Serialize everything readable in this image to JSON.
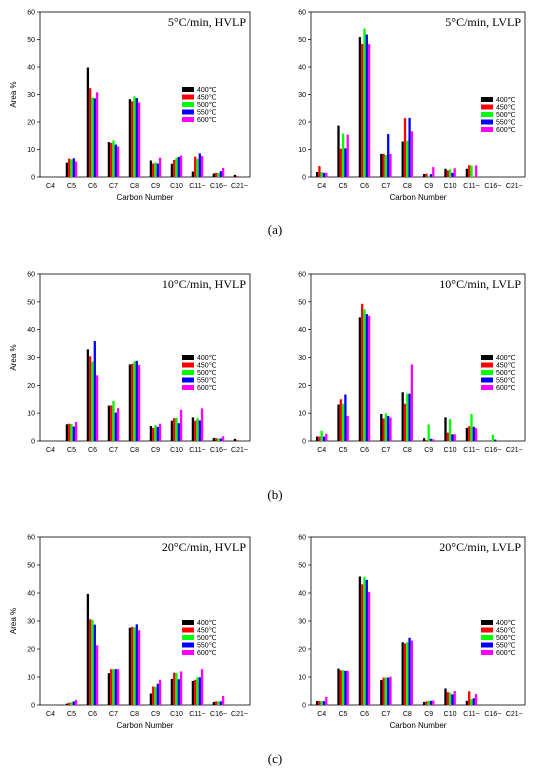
{
  "series_colors": [
    "#000000",
    "#ff0000",
    "#00ff00",
    "#0000ff",
    "#ff00ff"
  ],
  "chart_data": [
    {
      "type": "bar",
      "title": "5°C/min, HVLP",
      "xlabel": "Carbon Number",
      "ylabel": "Area %",
      "ylim": [
        0,
        60
      ],
      "yticks": [
        0,
        10,
        20,
        30,
        40,
        50,
        60
      ],
      "categories": [
        "C4",
        "C5",
        "C6",
        "C7",
        "C8",
        "C9",
        "C10",
        "C11~",
        "C16~",
        "C21~"
      ],
      "legend_position": "right",
      "series": [
        {
          "name": "400℃",
          "values": [
            0,
            5.2,
            39.8,
            12.7,
            28.3,
            6.0,
            4.8,
            2.0,
            1.3,
            0.8
          ]
        },
        {
          "name": "450℃",
          "values": [
            0,
            6.7,
            32.3,
            12.4,
            27.5,
            4.9,
            6.2,
            7.4,
            1.5,
            0.3
          ]
        },
        {
          "name": "500℃",
          "values": [
            0,
            6.4,
            28.9,
            13.3,
            29.3,
            5.3,
            6.9,
            6.6,
            1.4,
            0
          ]
        },
        {
          "name": "550℃",
          "values": [
            0,
            6.8,
            28.6,
            11.8,
            28.7,
            4.9,
            7.3,
            8.6,
            2.1,
            0
          ]
        },
        {
          "name": "600℃",
          "values": [
            0,
            5.6,
            30.8,
            11.1,
            27.1,
            7.0,
            7.8,
            7.6,
            3.3,
            0
          ]
        }
      ]
    },
    {
      "type": "bar",
      "title": "5°C/min, LVLP",
      "xlabel": "Carbon Number",
      "ylabel": "",
      "ylim": [
        0,
        60
      ],
      "yticks": [
        0,
        10,
        20,
        30,
        40,
        50,
        60
      ],
      "categories": [
        "C4",
        "C5",
        "C6",
        "C7",
        "C8",
        "C9",
        "C10",
        "C11~",
        "C16~",
        "C21~"
      ],
      "legend_position": "right",
      "series": [
        {
          "name": "400℃",
          "values": [
            1.8,
            18.7,
            50.9,
            8.4,
            12.9,
            1.1,
            3.0,
            3.0,
            0,
            0
          ]
        },
        {
          "name": "450℃",
          "values": [
            4.0,
            10.3,
            48.4,
            8.4,
            21.4,
            1.2,
            2.4,
            4.3,
            0,
            0
          ]
        },
        {
          "name": "500℃",
          "values": [
            1.8,
            15.8,
            54.0,
            8.0,
            13.2,
            0.3,
            2.8,
            4.1,
            0,
            0
          ]
        },
        {
          "name": "550℃",
          "values": [
            1.5,
            10.4,
            51.8,
            15.6,
            21.5,
            1.0,
            1.5,
            0,
            0,
            0
          ]
        },
        {
          "name": "600℃",
          "values": [
            1.5,
            15.4,
            48.3,
            8.4,
            16.6,
            3.6,
            3.2,
            4.2,
            0,
            0
          ]
        }
      ]
    },
    {
      "type": "bar",
      "title": "10°C/min, HVLP",
      "xlabel": "",
      "ylabel": "Area %",
      "ylim": [
        0,
        60
      ],
      "yticks": [
        0,
        10,
        20,
        30,
        40,
        50,
        60
      ],
      "categories": [
        "C4",
        "C5",
        "C6",
        "C7",
        "C8",
        "C9",
        "C10",
        "C11~",
        "C16~",
        "C21~"
      ],
      "legend_position": "right",
      "series": [
        {
          "name": "400℃",
          "values": [
            0,
            6.0,
            32.9,
            12.7,
            27.5,
            5.4,
            7.3,
            8.5,
            1.1,
            0.8
          ]
        },
        {
          "name": "450℃",
          "values": [
            0,
            6.2,
            30.4,
            12.8,
            27.7,
            4.7,
            8.2,
            7.3,
            1.0,
            0.3
          ]
        },
        {
          "name": "500℃",
          "values": [
            0,
            6.1,
            28.5,
            14.4,
            28.6,
            5.7,
            8.3,
            8.2,
            0.9,
            0
          ]
        },
        {
          "name": "550℃",
          "values": [
            0,
            5.2,
            35.9,
            10.2,
            28.8,
            5.1,
            6.4,
            7.4,
            0.9,
            0
          ]
        },
        {
          "name": "600℃",
          "values": [
            0,
            6.8,
            23.6,
            11.8,
            27.3,
            6.2,
            11.2,
            11.7,
            1.7,
            0
          ]
        }
      ]
    },
    {
      "type": "bar",
      "title": "10°C/min, LVLP",
      "xlabel": "",
      "ylabel": "",
      "ylim": [
        0,
        60
      ],
      "yticks": [
        0,
        10,
        20,
        30,
        40,
        50,
        60
      ],
      "categories": [
        "C4",
        "C5",
        "C6",
        "C7",
        "C8",
        "C9",
        "C10",
        "C11~",
        "C16~",
        "C21~"
      ],
      "legend_position": "right",
      "series": [
        {
          "name": "400℃",
          "values": [
            1.6,
            13.1,
            44.4,
            9.7,
            17.5,
            1.0,
            8.5,
            4.7,
            0,
            0
          ]
        },
        {
          "name": "450℃",
          "values": [
            1.6,
            15.0,
            49.3,
            8.1,
            13.4,
            0.3,
            3.0,
            5.3,
            0,
            0
          ]
        },
        {
          "name": "500℃",
          "values": [
            3.7,
            13.4,
            47.3,
            9.9,
            17.0,
            5.9,
            7.9,
            9.7,
            2.2,
            0
          ]
        },
        {
          "name": "550℃",
          "values": [
            1.6,
            16.7,
            45.6,
            9.0,
            17.0,
            0.8,
            2.4,
            5.1,
            0.5,
            0
          ]
        },
        {
          "name": "600℃",
          "values": [
            2.6,
            9.0,
            45.0,
            8.4,
            27.5,
            0.6,
            2.4,
            4.6,
            0,
            0
          ]
        }
      ]
    },
    {
      "type": "bar",
      "title": "20°C/min, HVLP",
      "xlabel": "Carbon Number",
      "ylabel": "Area %",
      "ylim": [
        0,
        60
      ],
      "yticks": [
        0,
        10,
        20,
        30,
        40,
        50,
        60
      ],
      "categories": [
        "C4",
        "C5",
        "C6",
        "C7",
        "C8",
        "C9",
        "C10",
        "C11~",
        "C16~",
        "C21~"
      ],
      "legend_position": "right",
      "series": [
        {
          "name": "400℃",
          "values": [
            0,
            0.5,
            39.7,
            11.4,
            27.6,
            4.1,
            9.3,
            8.6,
            1.1,
            0
          ]
        },
        {
          "name": "450℃",
          "values": [
            0,
            0.8,
            30.6,
            12.8,
            27.9,
            6.6,
            11.5,
            9.0,
            1.3,
            0
          ]
        },
        {
          "name": "500℃",
          "values": [
            0,
            1.0,
            30.4,
            12.8,
            27.7,
            6.5,
            11.4,
            9.9,
            1.3,
            0
          ]
        },
        {
          "name": "550℃",
          "values": [
            0,
            1.3,
            28.7,
            12.8,
            28.8,
            7.6,
            9.2,
            9.9,
            1.3,
            0
          ]
        },
        {
          "name": "600℃",
          "values": [
            0,
            1.8,
            21.3,
            12.8,
            26.7,
            9.0,
            12.0,
            12.8,
            3.2,
            0
          ]
        }
      ]
    },
    {
      "type": "bar",
      "title": "20°C/min, LVLP",
      "xlabel": "Carbon Number",
      "ylabel": "",
      "ylim": [
        0,
        60
      ],
      "yticks": [
        0,
        10,
        20,
        30,
        40,
        50,
        60
      ],
      "categories": [
        "C4",
        "C5",
        "C6",
        "C7",
        "C8",
        "C9",
        "C10",
        "C11~",
        "C16~",
        "C21~"
      ],
      "legend_position": "right",
      "series": [
        {
          "name": "400℃",
          "values": [
            1.4,
            13.0,
            45.9,
            8.9,
            22.4,
            1.1,
            5.9,
            1.5,
            0,
            0
          ]
        },
        {
          "name": "450℃",
          "values": [
            1.4,
            12.4,
            43.1,
            9.8,
            22.0,
            1.3,
            4.6,
            4.9,
            0,
            0
          ]
        },
        {
          "name": "500℃",
          "values": [
            1.3,
            12.4,
            45.8,
            9.8,
            22.4,
            1.5,
            4.4,
            2.1,
            0,
            0
          ]
        },
        {
          "name": "550℃",
          "values": [
            1.4,
            12.2,
            44.7,
            9.8,
            24.0,
            1.5,
            3.8,
            2.4,
            0,
            0
          ]
        },
        {
          "name": "600℃",
          "values": [
            2.9,
            12.2,
            40.4,
            10.1,
            23.0,
            1.6,
            5.0,
            3.9,
            0,
            0
          ]
        }
      ]
    }
  ],
  "captions": [
    "(a)",
    "(b)",
    "(c)"
  ]
}
